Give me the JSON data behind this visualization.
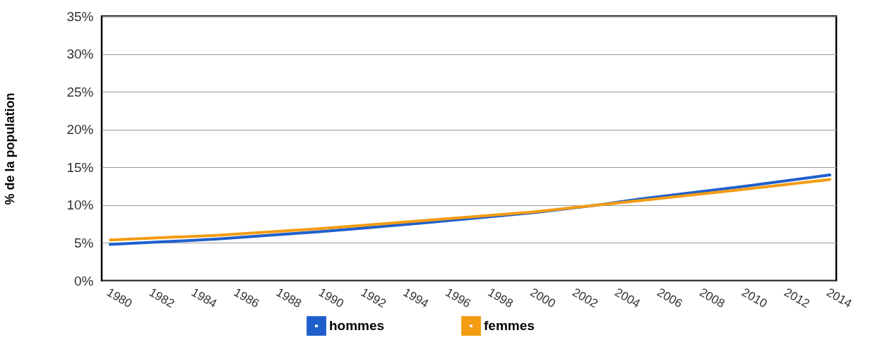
{
  "chart_data": {
    "type": "line",
    "ylabel": "% de la population",
    "x": [
      1980,
      1985,
      1990,
      1995,
      2000,
      2003,
      2005,
      2010,
      2014
    ],
    "series": [
      {
        "name": "hommes",
        "color": "#1f5fcc",
        "values": [
          4.8,
          5.5,
          6.5,
          7.7,
          9.0,
          10.0,
          10.8,
          12.5,
          14.0
        ]
      },
      {
        "name": "femmes",
        "color": "#f39c12",
        "values": [
          5.4,
          6.0,
          6.9,
          8.0,
          9.1,
          10.0,
          10.6,
          12.1,
          13.4
        ]
      }
    ],
    "xlim": [
      1979.6,
      2014.3
    ],
    "xticks": [
      1980,
      1982,
      1984,
      1986,
      1988,
      1990,
      1992,
      1994,
      1996,
      1998,
      2000,
      2002,
      2004,
      2006,
      2008,
      2010,
      2012,
      2014
    ],
    "ylim": [
      0,
      35
    ],
    "yticks": [
      {
        "value": 0,
        "label": "0%"
      },
      {
        "value": 5,
        "label": "5%"
      },
      {
        "value": 10,
        "label": "10%"
      },
      {
        "value": 15,
        "label": "15%"
      },
      {
        "value": 20,
        "label": "20%"
      },
      {
        "value": 25,
        "label": "25%"
      },
      {
        "value": 30,
        "label": "30%"
      },
      {
        "value": 35,
        "label": "35%"
      }
    ],
    "grid": "y",
    "legend": "bottom",
    "marker": "none",
    "line_style": "solid"
  }
}
